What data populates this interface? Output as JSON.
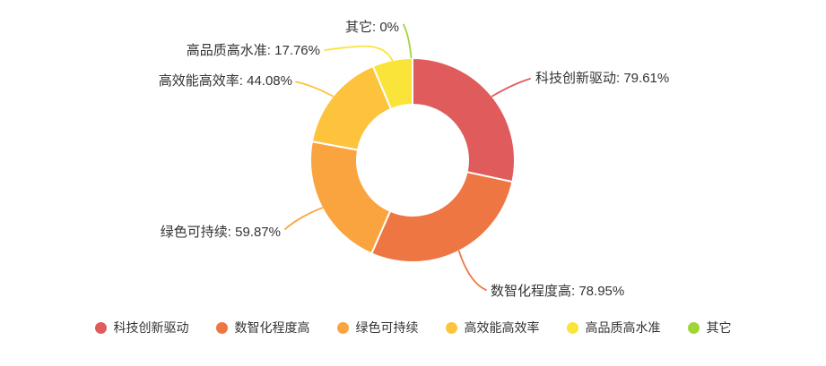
{
  "chart_data": {
    "type": "pie",
    "variant": "donut",
    "title": "",
    "categories": [
      "科技创新驱动",
      "数智化程度高",
      "绿色可持续",
      "高效能高效率",
      "高品质高水准",
      "其它"
    ],
    "values": [
      79.61,
      78.95,
      59.87,
      44.08,
      17.76,
      0
    ],
    "value_labels": [
      "79.61%",
      "78.95%",
      "59.87%",
      "44.08%",
      "17.76%",
      "0%"
    ],
    "label_separator": ": ",
    "colors": [
      "#e05c5c",
      "#ee7642",
      "#faa43f",
      "#fdc33d",
      "#fae43a",
      "#a0d53a"
    ],
    "border_color": "#ffffff",
    "text_color": "#333333",
    "legend": {
      "position": "bottom",
      "items": [
        "科技创新驱动",
        "数智化程度高",
        "绿色可持续",
        "高效能高效率",
        "高品质高水准",
        "其它"
      ]
    },
    "layout_hints": {
      "start_angle": "12 o'clock, clockwise",
      "slices_normalized_to_total": true,
      "grid": false
    }
  }
}
